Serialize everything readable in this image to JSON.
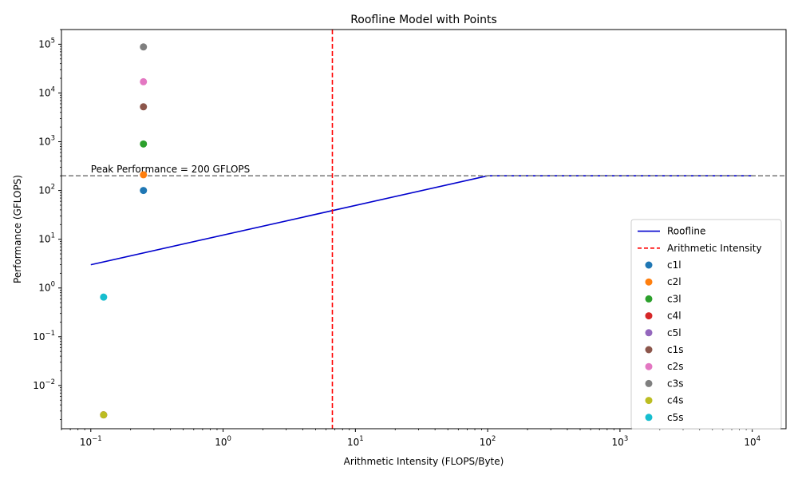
{
  "chart_data": {
    "type": "scatter",
    "title": "Roofline Model with Points",
    "xlabel": "Arithmetic Intensity (FLOPS/Byte)",
    "ylabel": "Performance (GFLOPS)",
    "xscale": "log",
    "yscale": "log",
    "xlim": [
      0.06,
      18000
    ],
    "ylim": [
      0.0013,
      200000
    ],
    "x_ticks": [
      {
        "value": 0.1,
        "base": "10",
        "exp": "−1"
      },
      {
        "value": 1,
        "base": "10",
        "exp": "0"
      },
      {
        "value": 10,
        "base": "10",
        "exp": "1"
      },
      {
        "value": 100,
        "base": "10",
        "exp": "2"
      },
      {
        "value": 1000,
        "base": "10",
        "exp": "3"
      },
      {
        "value": 10000,
        "base": "10",
        "exp": "4"
      }
    ],
    "y_ticks": [
      {
        "value": 0.01,
        "base": "10",
        "exp": "−2"
      },
      {
        "value": 0.1,
        "base": "10",
        "exp": "−1"
      },
      {
        "value": 1,
        "base": "10",
        "exp": "0"
      },
      {
        "value": 10,
        "base": "10",
        "exp": "1"
      },
      {
        "value": 100,
        "base": "10",
        "exp": "2"
      },
      {
        "value": 1000,
        "base": "10",
        "exp": "3"
      },
      {
        "value": 10000,
        "base": "10",
        "exp": "4"
      },
      {
        "value": 100000,
        "base": "10",
        "exp": "5"
      }
    ],
    "roofline": {
      "name": "Roofline",
      "color": "#0000cd",
      "x": [
        0.1,
        100,
        10000
      ],
      "y": [
        3,
        200,
        200
      ]
    },
    "arithmetic_intensity": {
      "name": "Arithmetic Intensity",
      "color": "#ff0000",
      "x": 6.7
    },
    "peak": {
      "value": 200,
      "color": "#808080",
      "label": "Peak Performance = 200 GFLOPS"
    },
    "points": [
      {
        "name": "c1l",
        "color": "#1f77b4",
        "x": 0.25,
        "y": 100
      },
      {
        "name": "c2l",
        "color": "#ff7f0e",
        "x": 0.25,
        "y": 210
      },
      {
        "name": "c3l",
        "color": "#2ca02c",
        "x": 0.25,
        "y": 900
      },
      {
        "name": "c4l",
        "color": "#d62728",
        "x": 0.125,
        "y": 0.0025
      },
      {
        "name": "c5l",
        "color": "#9467bd",
        "x": 0.125,
        "y": 0.0025
      },
      {
        "name": "c1s",
        "color": "#8c564b",
        "x": 0.25,
        "y": 5200
      },
      {
        "name": "c2s",
        "color": "#e377c2",
        "x": 0.25,
        "y": 17000
      },
      {
        "name": "c3s",
        "color": "#7f7f7f",
        "x": 0.25,
        "y": 88000
      },
      {
        "name": "c4s",
        "color": "#bcbd22",
        "x": 0.125,
        "y": 0.0025
      },
      {
        "name": "c5s",
        "color": "#17becf",
        "x": 0.125,
        "y": 0.65
      }
    ],
    "legend": {
      "placement": "lower-right"
    }
  }
}
